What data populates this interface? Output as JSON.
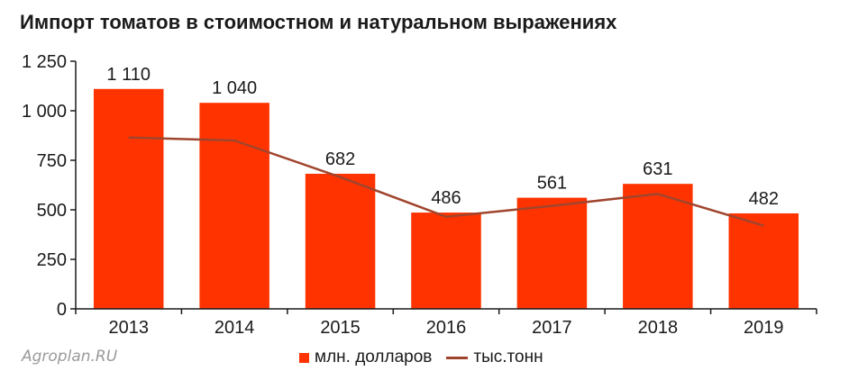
{
  "title": "Импорт томатов в стоимостном и натуральном выражениях",
  "watermark": "Agroplan.RU",
  "colors": {
    "bar": "#ff3300",
    "line": "#a0452d",
    "axis": "#1a1a1a"
  },
  "legend": [
    {
      "label": "млн. долларов",
      "kind": "bar"
    },
    {
      "label": "тыс.тонн",
      "kind": "line"
    }
  ],
  "chart_data": {
    "type": "bar",
    "categories": [
      "2013",
      "2014",
      "2015",
      "2016",
      "2017",
      "2018",
      "2019"
    ],
    "series": [
      {
        "name": "млн. долларов",
        "type": "bar",
        "values": [
          1110,
          1040,
          682,
          486,
          561,
          631,
          482
        ],
        "labels": [
          "1 110",
          "1 040",
          "682",
          "486",
          "561",
          "631",
          "482"
        ]
      },
      {
        "name": "тыс.тонн",
        "type": "line",
        "values": [
          865,
          850,
          665,
          465,
          520,
          580,
          420
        ]
      }
    ],
    "ylim": [
      0,
      1250
    ],
    "yticks": [
      0,
      250,
      500,
      750,
      1000,
      1250
    ],
    "ytick_labels": [
      "0",
      "250",
      "500",
      "750",
      "1 000",
      "1 250"
    ],
    "grid": false,
    "legend_position": "bottom"
  }
}
